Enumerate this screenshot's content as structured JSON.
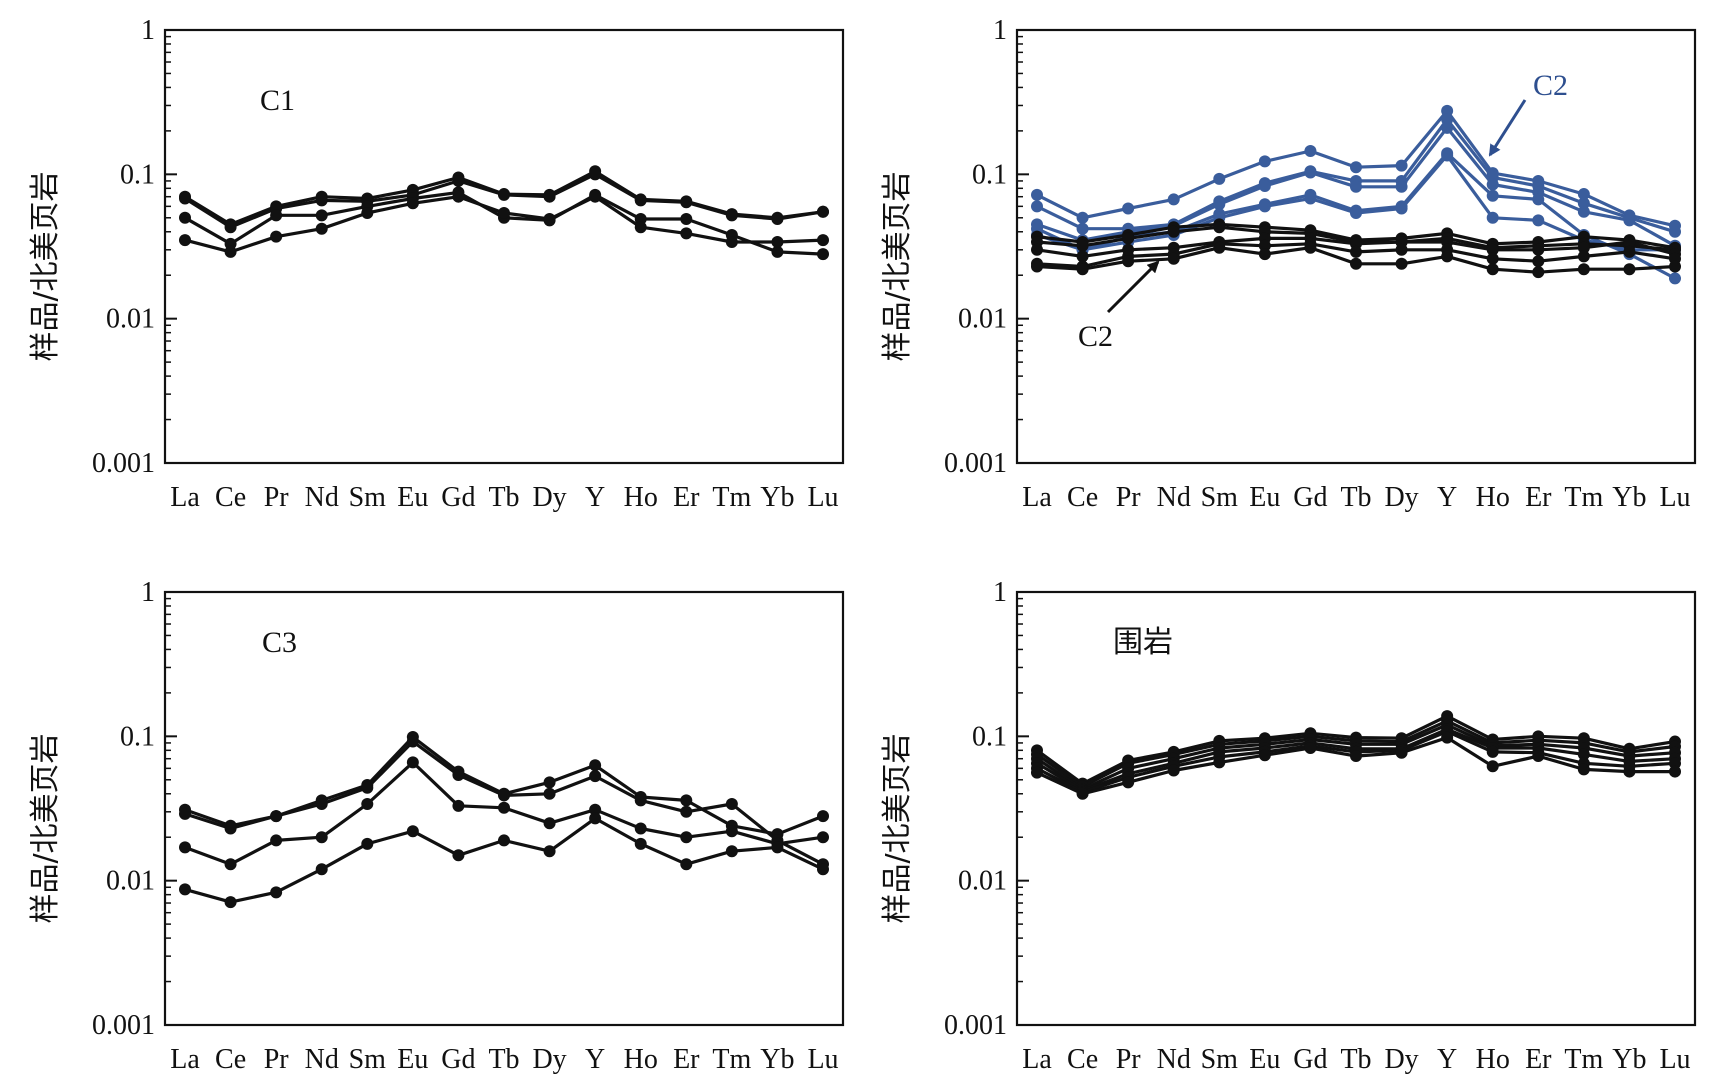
{
  "chart_data": [
    {
      "type": "line",
      "panel": "C1",
      "label": "C1",
      "ylabel": "样品/北美页岩",
      "yscale": "log",
      "ylim": [
        0.001,
        1
      ],
      "yticks": [
        "1",
        "0.1",
        "0.01",
        "0.001"
      ],
      "categories": [
        "La",
        "Ce",
        "Pr",
        "Nd",
        "Sm",
        "Eu",
        "Gd",
        "Tb",
        "Dy",
        "Y",
        "Ho",
        "Er",
        "Tm",
        "Yb",
        "Lu"
      ],
      "series": [
        {
          "color": "#111111",
          "values": [
            0.07,
            0.045,
            0.06,
            0.07,
            0.068,
            0.078,
            0.095,
            0.073,
            0.072,
            0.105,
            0.067,
            0.065,
            0.053,
            0.05,
            0.055
          ]
        },
        {
          "color": "#111111",
          "values": [
            0.068,
            0.043,
            0.058,
            0.066,
            0.065,
            0.072,
            0.09,
            0.072,
            0.07,
            0.1,
            0.066,
            0.064,
            0.052,
            0.049,
            0.055
          ]
        },
        {
          "color": "#111111",
          "values": [
            0.05,
            0.033,
            0.052,
            0.052,
            0.06,
            0.068,
            0.075,
            0.05,
            0.048,
            0.072,
            0.049,
            0.049,
            0.038,
            0.029,
            0.028
          ]
        },
        {
          "color": "#111111",
          "values": [
            0.035,
            0.029,
            0.037,
            0.042,
            0.054,
            0.063,
            0.07,
            0.054,
            0.049,
            0.07,
            0.043,
            0.039,
            0.034,
            0.034,
            0.035
          ]
        }
      ]
    },
    {
      "type": "line",
      "panel": "C2",
      "label": "",
      "ylabel": "样品/北美页岩",
      "yscale": "log",
      "ylim": [
        0.001,
        1
      ],
      "yticks": [
        "1",
        "0.1",
        "0.01",
        "0.001"
      ],
      "categories": [
        "La",
        "Ce",
        "Pr",
        "Nd",
        "Sm",
        "Eu",
        "Gd",
        "Tb",
        "Dy",
        "Y",
        "Ho",
        "Er",
        "Tm",
        "Yb",
        "Lu"
      ],
      "annotations": [
        {
          "text": "C2",
          "color": "#2e4f8f",
          "arrow": "down-left",
          "target": "Ho"
        },
        {
          "text": "C2",
          "color": "#111111",
          "arrow": "up-right",
          "target": "Nd"
        }
      ],
      "series": [
        {
          "color": "#3a5d9c",
          "values": [
            0.072,
            0.05,
            0.058,
            0.067,
            0.093,
            0.123,
            0.145,
            0.112,
            0.115,
            0.275,
            0.102,
            0.09,
            0.073,
            0.052,
            0.044
          ]
        },
        {
          "color": "#3a5d9c",
          "values": [
            0.06,
            0.042,
            0.042,
            0.045,
            0.065,
            0.087,
            0.105,
            0.09,
            0.09,
            0.24,
            0.095,
            0.083,
            0.063,
            0.05,
            0.04
          ]
        },
        {
          "color": "#3a5d9c",
          "values": [
            0.045,
            0.035,
            0.04,
            0.044,
            0.062,
            0.083,
            0.103,
            0.082,
            0.082,
            0.21,
            0.085,
            0.075,
            0.055,
            0.048,
            0.032
          ]
        },
        {
          "color": "#3a5d9c",
          "values": [
            0.042,
            0.03,
            0.037,
            0.04,
            0.053,
            0.062,
            0.072,
            0.056,
            0.06,
            0.14,
            0.071,
            0.067,
            0.038,
            0.028,
            0.019
          ]
        },
        {
          "color": "#3a5d9c",
          "values": [
            0.038,
            0.03,
            0.034,
            0.038,
            0.05,
            0.06,
            0.068,
            0.054,
            0.058,
            0.135,
            0.05,
            0.048,
            0.035,
            0.03,
            0.03
          ]
        },
        {
          "color": "#111111",
          "values": [
            0.037,
            0.034,
            0.038,
            0.043,
            0.045,
            0.043,
            0.041,
            0.035,
            0.036,
            0.039,
            0.033,
            0.034,
            0.037,
            0.035,
            0.031
          ]
        },
        {
          "color": "#111111",
          "values": [
            0.034,
            0.032,
            0.036,
            0.04,
            0.043,
            0.04,
            0.039,
            0.034,
            0.034,
            0.036,
            0.031,
            0.032,
            0.033,
            0.032,
            0.03
          ]
        },
        {
          "color": "#111111",
          "values": [
            0.03,
            0.027,
            0.03,
            0.031,
            0.034,
            0.036,
            0.036,
            0.033,
            0.034,
            0.034,
            0.03,
            0.03,
            0.031,
            0.034,
            0.028
          ]
        },
        {
          "color": "#111111",
          "values": [
            0.024,
            0.023,
            0.027,
            0.028,
            0.033,
            0.032,
            0.033,
            0.029,
            0.03,
            0.03,
            0.026,
            0.025,
            0.027,
            0.029,
            0.026
          ]
        },
        {
          "color": "#111111",
          "values": [
            0.023,
            0.022,
            0.025,
            0.026,
            0.031,
            0.028,
            0.031,
            0.024,
            0.024,
            0.027,
            0.022,
            0.021,
            0.022,
            0.022,
            0.023
          ]
        }
      ]
    },
    {
      "type": "line",
      "panel": "C3",
      "label": "C3",
      "ylabel": "样品/北美页岩",
      "yscale": "log",
      "ylim": [
        0.001,
        1
      ],
      "yticks": [
        "1",
        "0.1",
        "0.01",
        "0.001"
      ],
      "categories": [
        "La",
        "Ce",
        "Pr",
        "Nd",
        "Sm",
        "Eu",
        "Gd",
        "Tb",
        "Dy",
        "Y",
        "Ho",
        "Er",
        "Tm",
        "Yb",
        "Lu"
      ],
      "series": [
        {
          "color": "#111111",
          "values": [
            0.031,
            0.024,
            0.028,
            0.036,
            0.046,
            0.099,
            0.057,
            0.04,
            0.048,
            0.063,
            0.038,
            0.036,
            0.024,
            0.021,
            0.028
          ]
        },
        {
          "color": "#111111",
          "values": [
            0.029,
            0.023,
            0.028,
            0.034,
            0.044,
            0.092,
            0.054,
            0.039,
            0.04,
            0.053,
            0.036,
            0.03,
            0.034,
            0.019,
            0.013
          ]
        },
        {
          "color": "#111111",
          "values": [
            0.017,
            0.013,
            0.019,
            0.02,
            0.034,
            0.066,
            0.033,
            0.032,
            0.025,
            0.031,
            0.023,
            0.02,
            0.022,
            0.018,
            0.02
          ]
        },
        {
          "color": "#111111",
          "values": [
            0.0087,
            0.0071,
            0.0083,
            0.012,
            0.018,
            0.022,
            0.015,
            0.019,
            0.016,
            0.027,
            0.018,
            0.013,
            0.016,
            0.017,
            0.012
          ]
        }
      ]
    },
    {
      "type": "line",
      "panel": "围岩",
      "label": "围岩",
      "ylabel": "样品/北美页岩",
      "yscale": "log",
      "ylim": [
        0.001,
        1
      ],
      "yticks": [
        "1",
        "0.1",
        "0.01",
        "0.001"
      ],
      "categories": [
        "La",
        "Ce",
        "Pr",
        "Nd",
        "Sm",
        "Eu",
        "Gd",
        "Tb",
        "Dy",
        "Y",
        "Ho",
        "Er",
        "Tm",
        "Yb",
        "Lu"
      ],
      "series": [
        {
          "color": "#111111",
          "values": [
            0.08,
            0.047,
            0.068,
            0.078,
            0.093,
            0.097,
            0.105,
            0.098,
            0.097,
            0.138,
            0.095,
            0.1,
            0.097,
            0.082,
            0.092
          ]
        },
        {
          "color": "#111111",
          "values": [
            0.075,
            0.045,
            0.065,
            0.075,
            0.088,
            0.093,
            0.1,
            0.093,
            0.092,
            0.128,
            0.09,
            0.094,
            0.09,
            0.078,
            0.085
          ]
        },
        {
          "color": "#111111",
          "values": [
            0.07,
            0.043,
            0.06,
            0.07,
            0.083,
            0.088,
            0.095,
            0.088,
            0.088,
            0.12,
            0.086,
            0.088,
            0.083,
            0.073,
            0.077
          ]
        },
        {
          "color": "#111111",
          "values": [
            0.065,
            0.042,
            0.055,
            0.065,
            0.078,
            0.083,
            0.09,
            0.082,
            0.082,
            0.112,
            0.083,
            0.083,
            0.075,
            0.067,
            0.07
          ]
        },
        {
          "color": "#111111",
          "values": [
            0.06,
            0.041,
            0.052,
            0.062,
            0.072,
            0.078,
            0.086,
            0.078,
            0.08,
            0.108,
            0.078,
            0.077,
            0.065,
            0.062,
            0.065
          ]
        },
        {
          "color": "#111111",
          "values": [
            0.056,
            0.04,
            0.048,
            0.058,
            0.066,
            0.074,
            0.083,
            0.073,
            0.077,
            0.098,
            0.062,
            0.073,
            0.059,
            0.057,
            0.057
          ]
        }
      ]
    }
  ]
}
